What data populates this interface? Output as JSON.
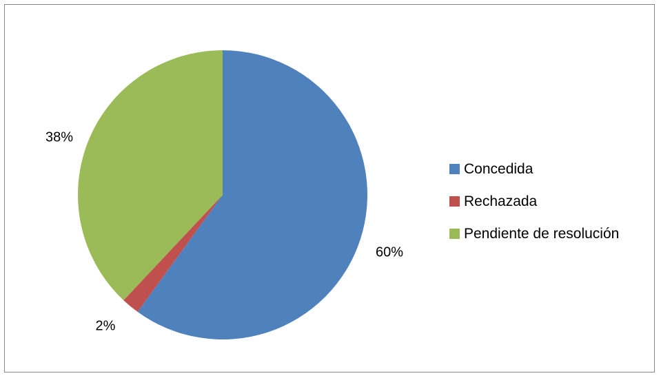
{
  "chart_data": {
    "type": "pie",
    "title": "",
    "slices": [
      {
        "name": "Concedida",
        "value": 60,
        "label": "60%",
        "color": "#4F81BD"
      },
      {
        "name": "Rechazada",
        "value": 2,
        "label": "2%",
        "color": "#C0504D"
      },
      {
        "name": "Pendiente de resolución",
        "value": 38,
        "label": "38%",
        "color": "#9BBB59"
      }
    ],
    "legend_position": "right"
  }
}
